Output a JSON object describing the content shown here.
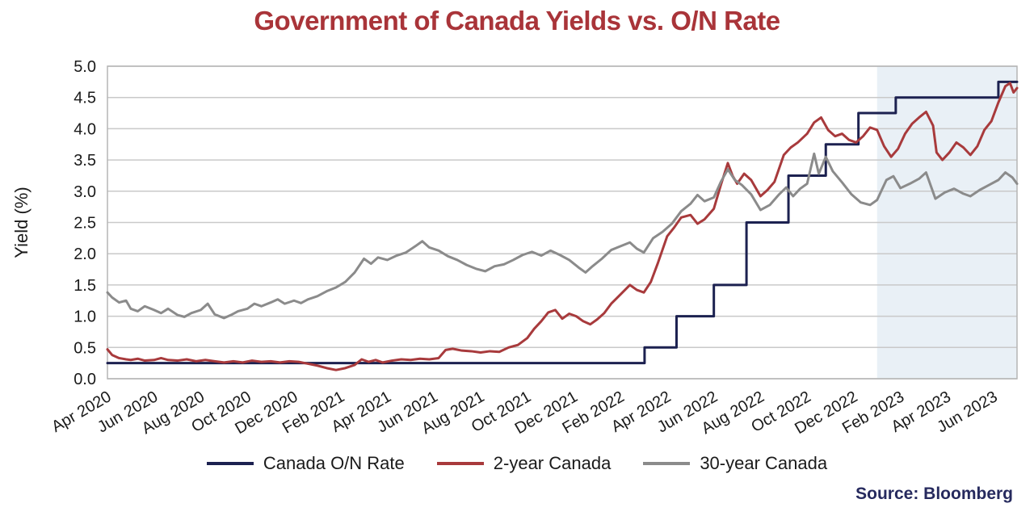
{
  "page": {
    "title": "Government of Canada Yields vs. O/N Rate",
    "source": "Source: Bloomberg"
  },
  "theme": {
    "title_color": "#a93439",
    "source_color": "#262a5e",
    "grid_color": "#c9c9c9",
    "border_color": "#b5b5b5",
    "tick_color": "#1a1a1a",
    "highlight_color": "#e9f0f6",
    "on_rate_color": "#1c2150",
    "two_year_color": "#a83a3c",
    "thirty_year_color": "#8b8b8b"
  },
  "chart_data": {
    "type": "line",
    "title": "Government of Canada Yields vs. O/N Rate",
    "xlabel": "",
    "ylabel": "Yield (%)",
    "x_unit": "months since Apr 2020",
    "x_range": [
      0,
      39
    ],
    "y_range": [
      0,
      5
    ],
    "grid": "horizontal",
    "legend_position": "bottom",
    "y_ticks": [
      0.0,
      0.5,
      1.0,
      1.5,
      2.0,
      2.5,
      3.0,
      3.5,
      4.0,
      4.5,
      5.0
    ],
    "x_ticks": [
      {
        "m": 0,
        "label": "Apr 2020"
      },
      {
        "m": 2,
        "label": "Jun 2020"
      },
      {
        "m": 4,
        "label": "Aug 2020"
      },
      {
        "m": 6,
        "label": "Oct 2020"
      },
      {
        "m": 8,
        "label": "Dec 2020"
      },
      {
        "m": 10,
        "label": "Feb 2021"
      },
      {
        "m": 12,
        "label": "Apr 2021"
      },
      {
        "m": 14,
        "label": "Jun 2021"
      },
      {
        "m": 16,
        "label": "Aug 2021"
      },
      {
        "m": 18,
        "label": "Oct 2021"
      },
      {
        "m": 20,
        "label": "Dec 2021"
      },
      {
        "m": 22,
        "label": "Feb 2022"
      },
      {
        "m": 24,
        "label": "Apr 2022"
      },
      {
        "m": 26,
        "label": "Jun 2022"
      },
      {
        "m": 28,
        "label": "Aug 2022"
      },
      {
        "m": 30,
        "label": "Oct 2022"
      },
      {
        "m": 32,
        "label": "Dec 2022"
      },
      {
        "m": 34,
        "label": "Feb 2023"
      },
      {
        "m": 36,
        "label": "Apr 2023"
      },
      {
        "m": 38,
        "label": "Jun 2023"
      }
    ],
    "highlight_region": {
      "from_month": 33,
      "to_month": 39,
      "color": "#e9f0f6"
    },
    "series": [
      {
        "name": "Canada O/N Rate",
        "color": "#1c2150",
        "style": "step",
        "points": [
          [
            0,
            0.25
          ],
          [
            23.03,
            0.5
          ],
          [
            24.4,
            1.0
          ],
          [
            26.0,
            1.5
          ],
          [
            27.4,
            2.5
          ],
          [
            29.2,
            3.25
          ],
          [
            30.8,
            3.75
          ],
          [
            32.2,
            4.25
          ],
          [
            33.8,
            4.5
          ],
          [
            38.2,
            4.75
          ],
          [
            39,
            4.75
          ]
        ]
      },
      {
        "name": "2-year Canada",
        "color": "#a83a3c",
        "style": "line",
        "points": [
          [
            0,
            0.47
          ],
          [
            0.2,
            0.38
          ],
          [
            0.5,
            0.33
          ],
          [
            0.8,
            0.31
          ],
          [
            1,
            0.3
          ],
          [
            1.3,
            0.32
          ],
          [
            1.6,
            0.29
          ],
          [
            2,
            0.3
          ],
          [
            2.3,
            0.33
          ],
          [
            2.6,
            0.3
          ],
          [
            3,
            0.29
          ],
          [
            3.4,
            0.31
          ],
          [
            3.8,
            0.28
          ],
          [
            4.2,
            0.3
          ],
          [
            4.6,
            0.28
          ],
          [
            5,
            0.26
          ],
          [
            5.4,
            0.28
          ],
          [
            5.8,
            0.26
          ],
          [
            6.2,
            0.29
          ],
          [
            6.6,
            0.27
          ],
          [
            7,
            0.28
          ],
          [
            7.4,
            0.26
          ],
          [
            7.8,
            0.28
          ],
          [
            8.2,
            0.27
          ],
          [
            8.6,
            0.24
          ],
          [
            9,
            0.21
          ],
          [
            9.4,
            0.17
          ],
          [
            9.8,
            0.14
          ],
          [
            10.2,
            0.17
          ],
          [
            10.6,
            0.22
          ],
          [
            10.9,
            0.31
          ],
          [
            11.2,
            0.27
          ],
          [
            11.5,
            0.3
          ],
          [
            11.8,
            0.26
          ],
          [
            12.2,
            0.29
          ],
          [
            12.6,
            0.31
          ],
          [
            13,
            0.3
          ],
          [
            13.4,
            0.32
          ],
          [
            13.8,
            0.31
          ],
          [
            14.2,
            0.33
          ],
          [
            14.5,
            0.46
          ],
          [
            14.8,
            0.48
          ],
          [
            15.2,
            0.45
          ],
          [
            15.6,
            0.44
          ],
          [
            16,
            0.42
          ],
          [
            16.4,
            0.44
          ],
          [
            16.8,
            0.43
          ],
          [
            17.2,
            0.5
          ],
          [
            17.6,
            0.54
          ],
          [
            18,
            0.65
          ],
          [
            18.3,
            0.8
          ],
          [
            18.6,
            0.92
          ],
          [
            18.9,
            1.06
          ],
          [
            19.2,
            1.1
          ],
          [
            19.5,
            0.96
          ],
          [
            19.8,
            1.04
          ],
          [
            20.1,
            1.0
          ],
          [
            20.4,
            0.92
          ],
          [
            20.7,
            0.87
          ],
          [
            21,
            0.95
          ],
          [
            21.3,
            1.05
          ],
          [
            21.6,
            1.2
          ],
          [
            22,
            1.35
          ],
          [
            22.4,
            1.5
          ],
          [
            22.7,
            1.42
          ],
          [
            23,
            1.38
          ],
          [
            23.3,
            1.55
          ],
          [
            23.6,
            1.85
          ],
          [
            24,
            2.28
          ],
          [
            24.3,
            2.42
          ],
          [
            24.6,
            2.58
          ],
          [
            25,
            2.62
          ],
          [
            25.3,
            2.48
          ],
          [
            25.6,
            2.55
          ],
          [
            26,
            2.72
          ],
          [
            26.3,
            3.1
          ],
          [
            26.6,
            3.45
          ],
          [
            26.8,
            3.25
          ],
          [
            27,
            3.12
          ],
          [
            27.3,
            3.28
          ],
          [
            27.6,
            3.18
          ],
          [
            28,
            2.92
          ],
          [
            28.3,
            3.02
          ],
          [
            28.6,
            3.15
          ],
          [
            29,
            3.58
          ],
          [
            29.3,
            3.7
          ],
          [
            29.6,
            3.78
          ],
          [
            30,
            3.92
          ],
          [
            30.3,
            4.1
          ],
          [
            30.6,
            4.18
          ],
          [
            30.9,
            3.98
          ],
          [
            31.2,
            3.88
          ],
          [
            31.5,
            3.92
          ],
          [
            31.8,
            3.82
          ],
          [
            32.1,
            3.78
          ],
          [
            32.4,
            3.88
          ],
          [
            32.7,
            4.02
          ],
          [
            33,
            3.98
          ],
          [
            33.3,
            3.72
          ],
          [
            33.6,
            3.55
          ],
          [
            33.9,
            3.68
          ],
          [
            34.2,
            3.92
          ],
          [
            34.5,
            4.08
          ],
          [
            34.8,
            4.18
          ],
          [
            35.1,
            4.27
          ],
          [
            35.4,
            4.05
          ],
          [
            35.55,
            3.62
          ],
          [
            35.8,
            3.5
          ],
          [
            36.1,
            3.62
          ],
          [
            36.4,
            3.78
          ],
          [
            36.7,
            3.7
          ],
          [
            37,
            3.58
          ],
          [
            37.3,
            3.72
          ],
          [
            37.6,
            3.98
          ],
          [
            37.9,
            4.12
          ],
          [
            38.2,
            4.42
          ],
          [
            38.5,
            4.68
          ],
          [
            38.7,
            4.73
          ],
          [
            38.85,
            4.58
          ],
          [
            39,
            4.65
          ]
        ]
      },
      {
        "name": "30-year Canada",
        "color": "#8b8b8b",
        "style": "line",
        "points": [
          [
            0,
            1.38
          ],
          [
            0.2,
            1.3
          ],
          [
            0.5,
            1.22
          ],
          [
            0.8,
            1.25
          ],
          [
            1,
            1.12
          ],
          [
            1.3,
            1.08
          ],
          [
            1.6,
            1.16
          ],
          [
            2,
            1.1
          ],
          [
            2.3,
            1.05
          ],
          [
            2.6,
            1.12
          ],
          [
            3,
            1.02
          ],
          [
            3.3,
            0.99
          ],
          [
            3.6,
            1.05
          ],
          [
            4,
            1.1
          ],
          [
            4.3,
            1.2
          ],
          [
            4.6,
            1.03
          ],
          [
            5,
            0.97
          ],
          [
            5.3,
            1.02
          ],
          [
            5.6,
            1.08
          ],
          [
            6,
            1.12
          ],
          [
            6.3,
            1.2
          ],
          [
            6.6,
            1.16
          ],
          [
            7,
            1.22
          ],
          [
            7.3,
            1.27
          ],
          [
            7.6,
            1.2
          ],
          [
            8,
            1.25
          ],
          [
            8.3,
            1.21
          ],
          [
            8.6,
            1.27
          ],
          [
            9,
            1.32
          ],
          [
            9.4,
            1.4
          ],
          [
            9.8,
            1.46
          ],
          [
            10.2,
            1.55
          ],
          [
            10.6,
            1.7
          ],
          [
            11,
            1.92
          ],
          [
            11.3,
            1.84
          ],
          [
            11.6,
            1.94
          ],
          [
            12,
            1.9
          ],
          [
            12.4,
            1.97
          ],
          [
            12.8,
            2.02
          ],
          [
            13.2,
            2.12
          ],
          [
            13.5,
            2.2
          ],
          [
            13.8,
            2.1
          ],
          [
            14.2,
            2.05
          ],
          [
            14.6,
            1.96
          ],
          [
            15,
            1.9
          ],
          [
            15.4,
            1.82
          ],
          [
            15.8,
            1.76
          ],
          [
            16.2,
            1.72
          ],
          [
            16.6,
            1.8
          ],
          [
            17,
            1.83
          ],
          [
            17.4,
            1.9
          ],
          [
            17.8,
            1.98
          ],
          [
            18.2,
            2.03
          ],
          [
            18.6,
            1.97
          ],
          [
            19,
            2.05
          ],
          [
            19.4,
            1.98
          ],
          [
            19.8,
            1.9
          ],
          [
            20.2,
            1.78
          ],
          [
            20.5,
            1.7
          ],
          [
            20.8,
            1.8
          ],
          [
            21.2,
            1.92
          ],
          [
            21.6,
            2.06
          ],
          [
            22,
            2.12
          ],
          [
            22.4,
            2.18
          ],
          [
            22.7,
            2.08
          ],
          [
            23,
            2.02
          ],
          [
            23.4,
            2.25
          ],
          [
            23.8,
            2.35
          ],
          [
            24.2,
            2.48
          ],
          [
            24.6,
            2.68
          ],
          [
            25,
            2.8
          ],
          [
            25.3,
            2.94
          ],
          [
            25.6,
            2.84
          ],
          [
            26,
            2.9
          ],
          [
            26.3,
            3.15
          ],
          [
            26.6,
            3.35
          ],
          [
            26.9,
            3.18
          ],
          [
            27.2,
            3.1
          ],
          [
            27.6,
            2.95
          ],
          [
            28,
            2.7
          ],
          [
            28.4,
            2.78
          ],
          [
            28.8,
            2.95
          ],
          [
            29.1,
            3.06
          ],
          [
            29.4,
            2.92
          ],
          [
            29.7,
            3.04
          ],
          [
            30,
            3.12
          ],
          [
            30.3,
            3.6
          ],
          [
            30.5,
            3.28
          ],
          [
            30.8,
            3.55
          ],
          [
            31.1,
            3.32
          ],
          [
            31.5,
            3.14
          ],
          [
            31.9,
            2.95
          ],
          [
            32.3,
            2.82
          ],
          [
            32.7,
            2.78
          ],
          [
            33,
            2.86
          ],
          [
            33.4,
            3.18
          ],
          [
            33.7,
            3.24
          ],
          [
            34,
            3.05
          ],
          [
            34.4,
            3.12
          ],
          [
            34.8,
            3.2
          ],
          [
            35.1,
            3.3
          ],
          [
            35.5,
            2.88
          ],
          [
            35.9,
            2.98
          ],
          [
            36.3,
            3.04
          ],
          [
            36.7,
            2.96
          ],
          [
            37,
            2.92
          ],
          [
            37.4,
            3.02
          ],
          [
            37.8,
            3.1
          ],
          [
            38.2,
            3.18
          ],
          [
            38.5,
            3.3
          ],
          [
            38.8,
            3.22
          ],
          [
            39,
            3.12
          ]
        ]
      }
    ]
  }
}
